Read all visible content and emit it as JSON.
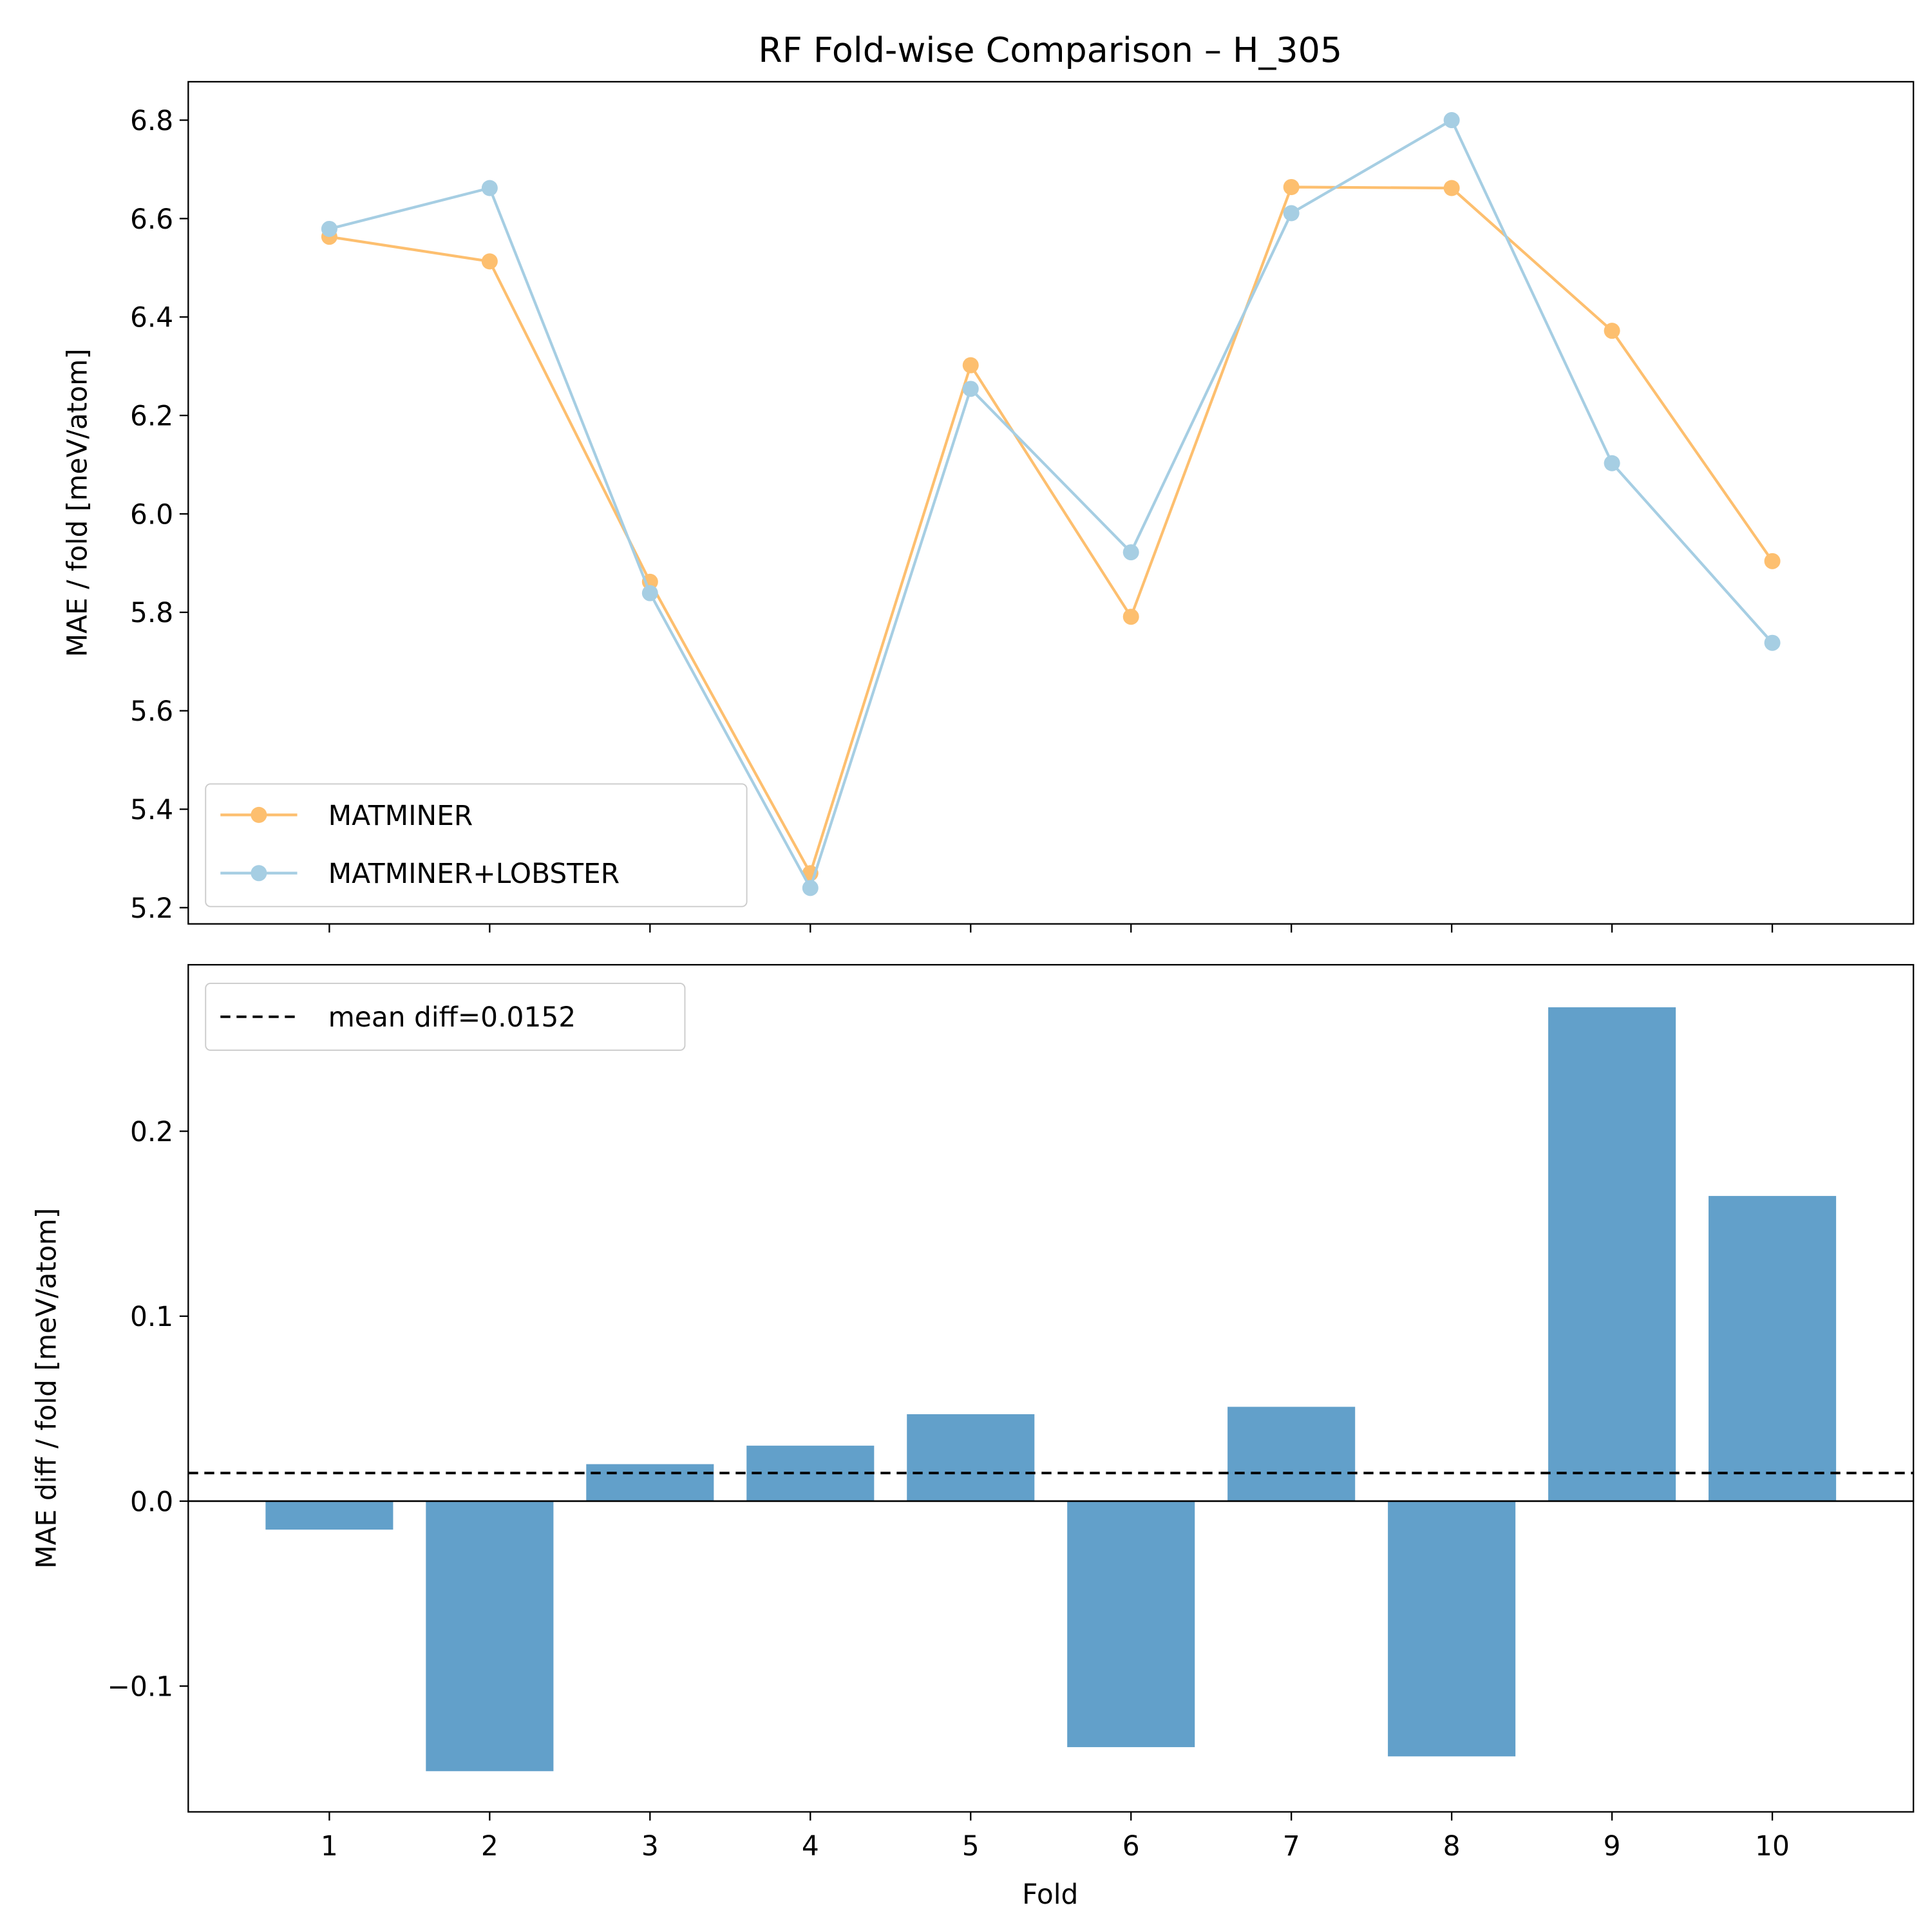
{
  "title": "RF Fold-wise Comparison – H_305",
  "chart_data": [
    {
      "type": "line",
      "ylabel": "MAE / fold [meV/atom]",
      "ylim": [
        5.167,
        6.878
      ],
      "xlim": [
        0.12,
        10.88
      ],
      "yticks": [
        "5.2",
        "5.4",
        "5.6",
        "5.8",
        "6.0",
        "6.2",
        "6.4",
        "6.6",
        "6.8"
      ],
      "x": [
        1,
        2,
        3,
        4,
        5,
        6,
        7,
        8,
        9,
        10
      ],
      "series": [
        {
          "name": "MATMINER",
          "color": "#fdbf6f",
          "values": [
            6.563,
            6.513,
            5.862,
            5.27,
            6.302,
            5.791,
            6.664,
            6.662,
            6.372,
            5.904
          ]
        },
        {
          "name": "MATMINER+LOBSTER",
          "color": "#a6cee3",
          "values": [
            6.579,
            6.662,
            5.839,
            5.24,
            6.254,
            5.922,
            6.611,
            6.8,
            6.103,
            5.738
          ]
        }
      ],
      "legend": "lower-left",
      "grid": false
    },
    {
      "type": "bar",
      "xlabel": "Fold",
      "ylabel": "MAE diff / fold [meV/atom]",
      "ylim": [
        -0.168,
        0.29
      ],
      "xlim": [
        0.12,
        10.88
      ],
      "yticks": [
        "−0.1",
        "0.0",
        "0.1",
        "0.2"
      ],
      "ytick_values": [
        -0.1,
        0,
        0.1,
        0.2
      ],
      "categories": [
        "1",
        "2",
        "3",
        "4",
        "5",
        "6",
        "7",
        "8",
        "9",
        "10"
      ],
      "values": [
        -0.0154,
        -0.146,
        0.02,
        0.03,
        0.047,
        -0.133,
        0.051,
        -0.138,
        0.267,
        0.165
      ],
      "bar_color": "#62a0ca",
      "mean_line": {
        "label": "mean diff=0.0152",
        "value": 0.0152
      },
      "legend": "upper-left",
      "grid": false
    }
  ]
}
